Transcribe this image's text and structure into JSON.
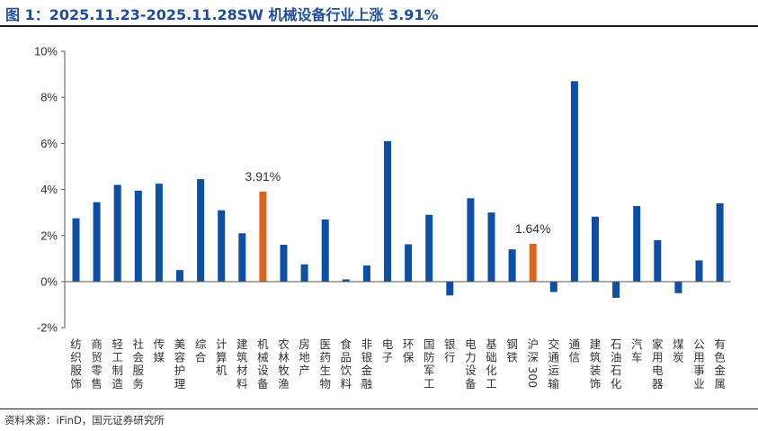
{
  "title": "图 1：2025.11.23-2025.11.28SW 机械设备行业上涨 3.91%",
  "source": "资料来源：iFinD，国元证券研究所",
  "colors": {
    "default_bar": "#0d4fa3",
    "highlight_bar": "#d9661f",
    "title": "#1f4e9b"
  },
  "chart_data": {
    "type": "bar",
    "ylim": [
      -2,
      10
    ],
    "yticks": [
      -2,
      0,
      2,
      4,
      6,
      8,
      10
    ],
    "ytick_labels": [
      "-2%",
      "0%",
      "2%",
      "4%",
      "6%",
      "8%",
      "10%"
    ],
    "grid": false,
    "categories": [
      "纺织服饰",
      "商贸零售",
      "轻工制造",
      "社会服务",
      "传媒",
      "美容护理",
      "综合",
      "计算机",
      "建筑材料",
      "机械设备",
      "农林牧渔",
      "房地产",
      "医药生物",
      "食品饮料",
      "非银金融",
      "电子",
      "环保",
      "国防军工",
      "银行",
      "电力设备",
      "基础化工",
      "钢铁",
      "沪深300",
      "交通运输",
      "通信",
      "建筑装饰",
      "石油石化",
      "汽车",
      "家用电器",
      "煤炭",
      "公用事业",
      "有色金属"
    ],
    "values": [
      2.75,
      3.45,
      4.2,
      3.95,
      4.25,
      0.5,
      4.45,
      3.1,
      2.1,
      3.91,
      1.6,
      0.75,
      2.7,
      0.1,
      0.7,
      6.1,
      1.62,
      2.9,
      -0.6,
      3.62,
      3.0,
      1.4,
      1.64,
      -0.45,
      8.7,
      2.82,
      -0.7,
      3.28,
      1.8,
      -0.5,
      0.92,
      3.4
    ],
    "highlight": [
      "机械设备",
      "沪深300"
    ],
    "data_labels": [
      {
        "category": "机械设备",
        "text": "3.91%"
      },
      {
        "category": "沪深300",
        "text": "1.64%"
      }
    ]
  }
}
